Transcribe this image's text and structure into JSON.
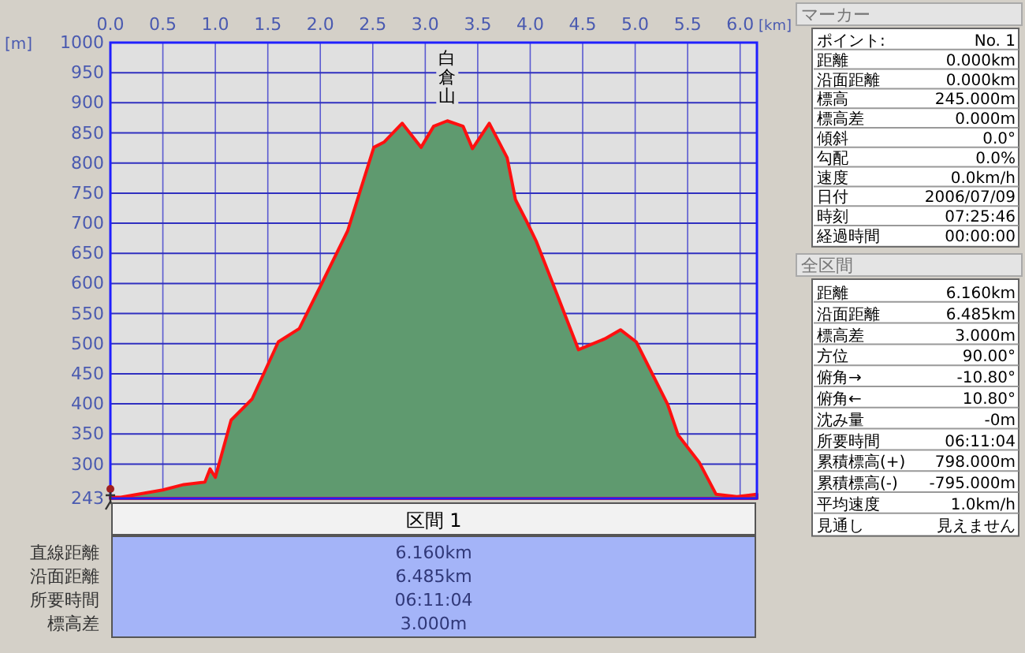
{
  "chart_data": [
    {
      "type": "area",
      "xlabel": "[km]",
      "ylabel": "[m]",
      "xlim": [
        0,
        6.16
      ],
      "ylim": [
        243,
        1000
      ],
      "xticks": [
        {
          "value": 0,
          "label": "0.0"
        },
        0.5,
        {
          "value": 1,
          "label": "1.0"
        },
        1.5,
        {
          "value": 2,
          "label": "2.0"
        },
        2.5,
        {
          "value": 3,
          "label": "3.0"
        },
        3.5,
        {
          "value": 4,
          "label": "4.0"
        },
        4.5,
        {
          "value": 5,
          "label": "5.0"
        },
        5.5,
        {
          "value": 6,
          "label": "6.0"
        }
      ],
      "yticks": [
        243,
        300,
        350,
        400,
        450,
        500,
        550,
        600,
        650,
        700,
        750,
        800,
        850,
        900,
        950,
        1000
      ],
      "grid": true,
      "x": [
        0,
        0.1,
        0.5,
        0.7,
        0.9,
        0.95,
        1.0,
        1.15,
        1.35,
        1.6,
        1.8,
        2.0,
        2.26,
        2.51,
        2.61,
        2.78,
        2.96,
        3.08,
        3.21,
        3.36,
        3.45,
        3.61,
        3.78,
        3.86,
        3.96,
        4.06,
        4.26,
        4.46,
        4.71,
        4.86,
        5.01,
        5.31,
        5.41,
        5.61,
        5.77,
        5.97,
        6.16
      ],
      "series": [
        {
          "color": "#5f9a6f",
          "values": [
            245,
            245,
            257,
            266,
            270,
            292,
            278,
            373,
            408,
            503,
            525,
            595,
            687,
            826,
            835,
            866,
            826,
            861,
            870,
            861,
            824,
            866,
            809,
            739,
            705,
            669,
            580,
            490,
            508,
            523,
            503,
            399,
            348,
            303,
            250,
            246,
            250
          ]
        }
      ],
      "annotations": [
        {
          "text": "白倉山",
          "x": 3.21,
          "y": 870
        }
      ]
    },
    {
      "type": "other",
      "title": "マーカー",
      "annotations": [
        "ポイント:",
        "No. 1",
        "距離",
        "0.000km",
        "沿面距離",
        "0.000km",
        "標高",
        "245.000m",
        "標高差",
        "0.000m",
        "傾斜",
        "0.0°",
        "勾配",
        "0.0%",
        "速度",
        "0.0km/h",
        "日付",
        "2006/07/09",
        "時刻",
        "07:25:46",
        "経過時間",
        "00:00:00"
      ]
    },
    {
      "type": "other",
      "title": "全区間",
      "annotations": [
        "距離",
        "6.160km",
        "沿面距離",
        "6.485km",
        "標高差",
        "3.000m",
        "方位",
        "90.00°",
        "俯角→",
        "-10.80°",
        "俯角←",
        "10.80°",
        "沈み量",
        "-0m",
        "所要時間",
        "06:11:04",
        "累積標高(+)",
        "798.000m",
        "累積標高(-)",
        "-795.000m",
        "平均速度",
        "1.0km/h",
        "見通し",
        "見えません"
      ]
    },
    {
      "type": "other",
      "title": "区間 1",
      "annotations": [
        "直線距離",
        "6.160km",
        "沿面距離",
        "6.485km",
        "所要時間",
        "06:11:04",
        "標高差",
        "3.000m"
      ]
    }
  ]
}
